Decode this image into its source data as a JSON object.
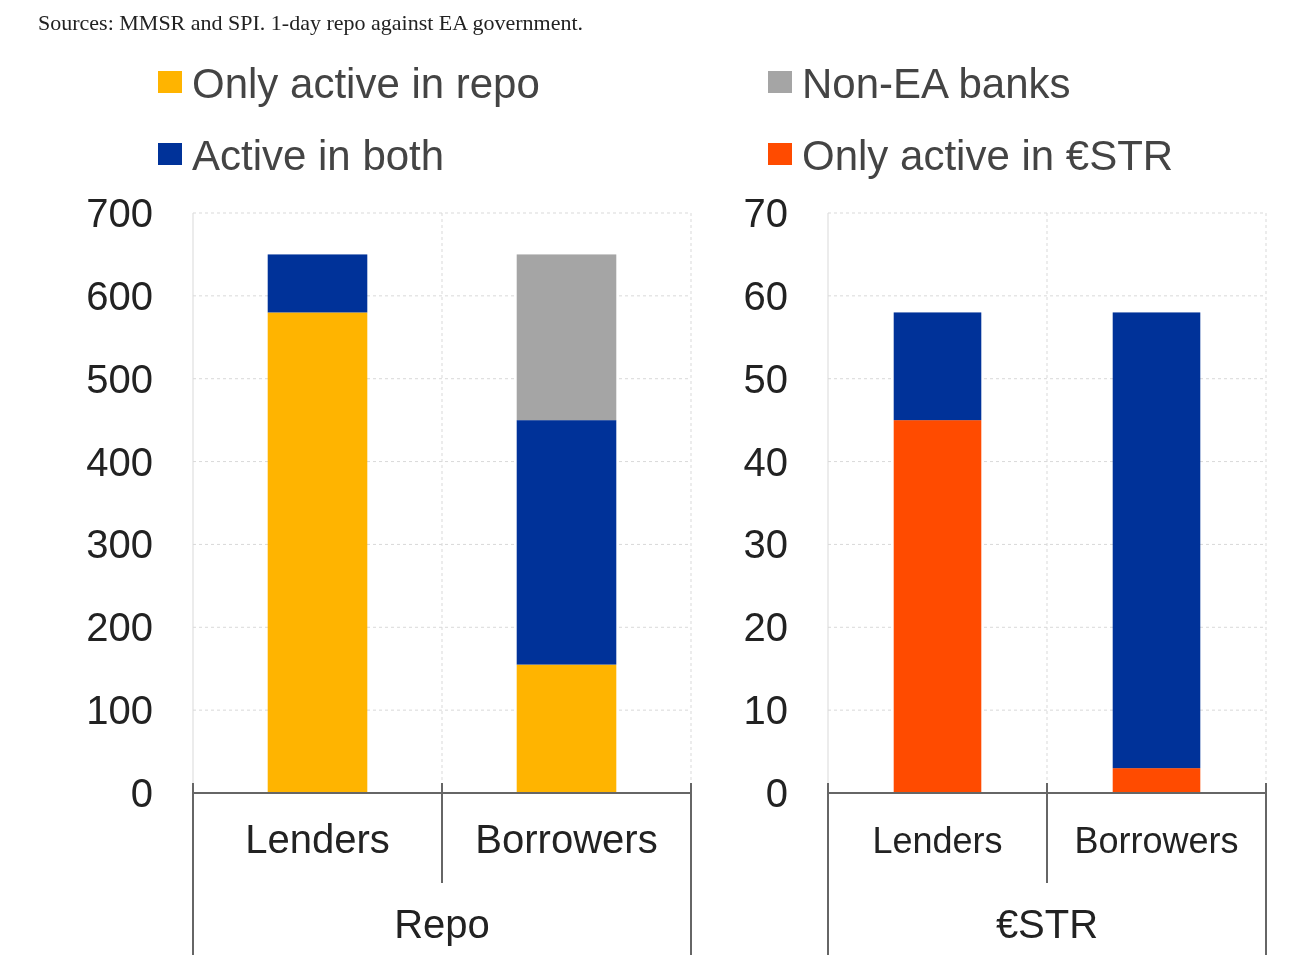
{
  "chart_data": [
    {
      "type": "bar",
      "stacked": true,
      "categories": [
        "Lenders",
        "Borrowers"
      ],
      "xlabel": "Repo",
      "ylim": [
        0,
        700
      ],
      "yticks": [
        0,
        100,
        200,
        300,
        400,
        500,
        600,
        700
      ],
      "grid": true,
      "legend": "top",
      "annotations": [
        "Sources: MMSR and SPI. 1-day repo against EA government."
      ],
      "series": [
        {
          "name": "Only active in repo",
          "color": "#ffb400",
          "values": [
            580,
            155
          ]
        },
        {
          "name": "Active in both",
          "color": "#003299",
          "values": [
            70,
            295
          ]
        },
        {
          "name": "Non-EA banks",
          "color": "#a5a5a5",
          "values": [
            0,
            200
          ]
        }
      ]
    },
    {
      "type": "bar",
      "stacked": true,
      "categories": [
        "Lenders",
        "Borrowers"
      ],
      "xlabel": "€STR",
      "ylim": [
        0,
        70
      ],
      "yticks": [
        0,
        10,
        20,
        30,
        40,
        50,
        60,
        70
      ],
      "grid": true,
      "legend": "top",
      "series": [
        {
          "name": "Only active in €STR",
          "color": "#ff4b00",
          "values": [
            45,
            3
          ]
        },
        {
          "color": "#003299",
          "values": [
            13,
            55
          ]
        }
      ]
    }
  ]
}
